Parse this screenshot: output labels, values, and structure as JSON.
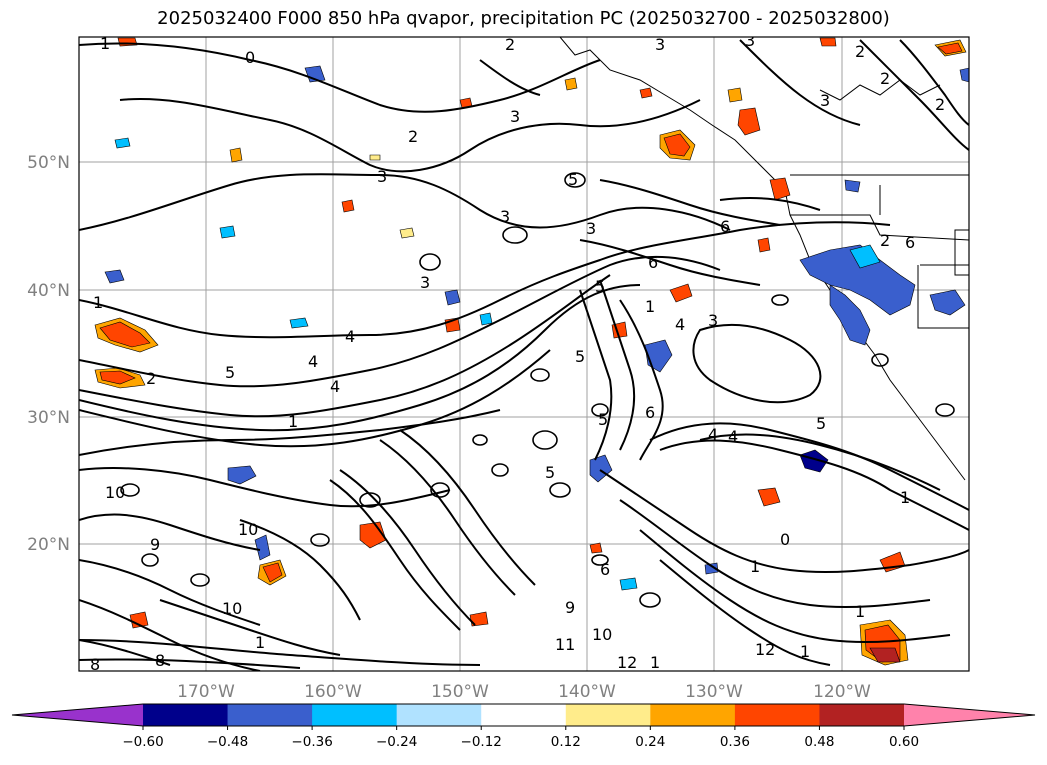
{
  "title": "2025032400 F000 850 hPa qvapor, precipitation PC (2025032700 - 2025032800)",
  "map": {
    "lat_labels": [
      "50°N",
      "40°N",
      "30°N",
      "20°N"
    ],
    "lon_labels": [
      "170°W",
      "160°W",
      "150°W",
      "140°W",
      "130°W",
      "120°W"
    ],
    "grid": true,
    "contour_labels": [
      "1",
      "0",
      "2",
      "3",
      "3",
      "2",
      "2",
      "2",
      "3",
      "3",
      "3",
      "3",
      "2",
      "2",
      "5",
      "3",
      "3",
      "6",
      "6",
      "6",
      "3",
      "5",
      "4",
      "4",
      "4",
      "1",
      "1",
      "2",
      "5",
      "4",
      "5",
      "5",
      "1",
      "4",
      "5",
      "6",
      "4",
      "5",
      "10",
      "10",
      "9",
      "9",
      "6",
      "1",
      "10",
      "11",
      "10",
      "12",
      "1",
      "12",
      "1",
      "1",
      "0",
      "1",
      "8",
      "8",
      "1"
    ]
  },
  "colorbar": {
    "tick_labels": [
      "−0.60",
      "−0.48",
      "−0.36",
      "−0.24",
      "−0.12",
      "0.12",
      "0.24",
      "0.36",
      "0.48",
      "0.60"
    ],
    "colors": [
      "#9932cc",
      "#00008b",
      "#3a5fcd",
      "#00bfff",
      "#b0e2ff",
      "#ffffff",
      "#ffec8b",
      "#ffa500",
      "#ff4500",
      "#b22222",
      "#ff82ab"
    ],
    "extend": "both"
  }
}
